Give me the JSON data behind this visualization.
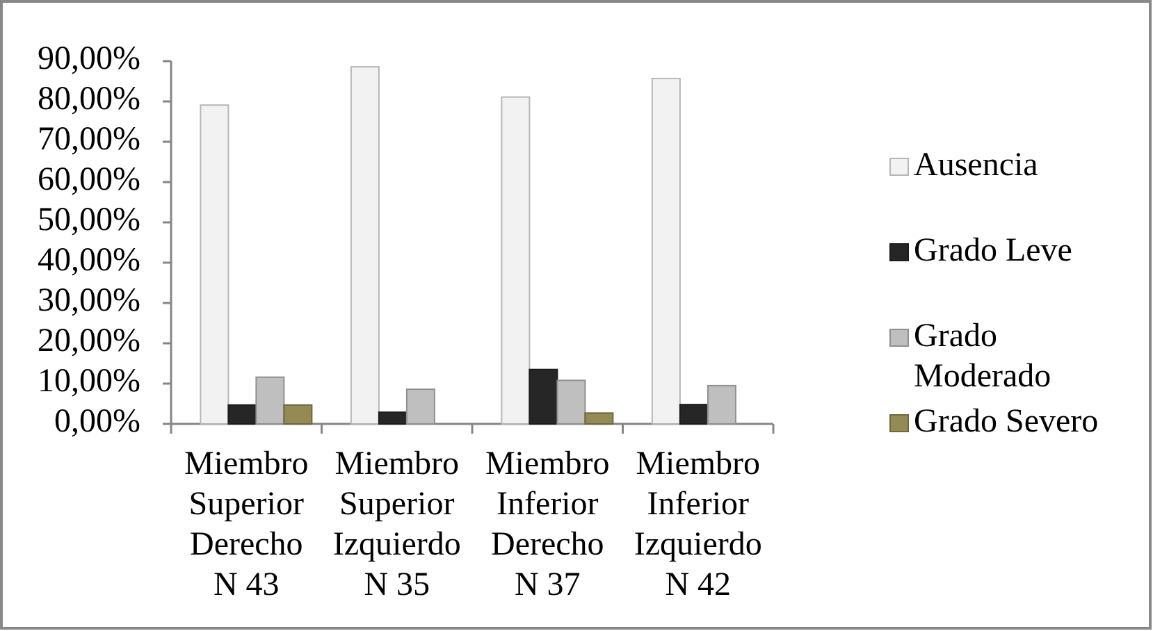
{
  "chart_data": {
    "type": "bar",
    "categories": [
      "Miembro Superior Derecho N 43",
      "Miembro Superior Izquierdo N 35",
      "Miembro Inferior Derecho N 37",
      "Miembro Inferior Izquierdo N 42"
    ],
    "series": [
      {
        "name": "Ausencia",
        "color": "#f2f2f2",
        "values": [
          79.1,
          88.6,
          81.1,
          85.7
        ]
      },
      {
        "name": "Grado Leve",
        "color": "#262626",
        "values": [
          4.7,
          2.9,
          13.5,
          4.8
        ]
      },
      {
        "name": "Grado Moderado",
        "color": "#bfbfbf",
        "values": [
          11.6,
          8.6,
          10.8,
          9.5
        ]
      },
      {
        "name": "Grado Severo",
        "color": "#948a54",
        "values": [
          4.7,
          0,
          2.7,
          0
        ]
      }
    ],
    "ylim": [
      0,
      90
    ],
    "yticks": [
      {
        "value": 0,
        "label": "0,00%"
      },
      {
        "value": 10,
        "label": "10,00%"
      },
      {
        "value": 20,
        "label": "20,00%"
      },
      {
        "value": 30,
        "label": "30,00%"
      },
      {
        "value": 40,
        "label": "40,00%"
      },
      {
        "value": 50,
        "label": "50,00%"
      },
      {
        "value": 60,
        "label": "60,00%"
      },
      {
        "value": 70,
        "label": "70,00%"
      },
      {
        "value": 80,
        "label": "80,00%"
      },
      {
        "value": 90,
        "label": "90,00%"
      }
    ],
    "legend": "right"
  }
}
